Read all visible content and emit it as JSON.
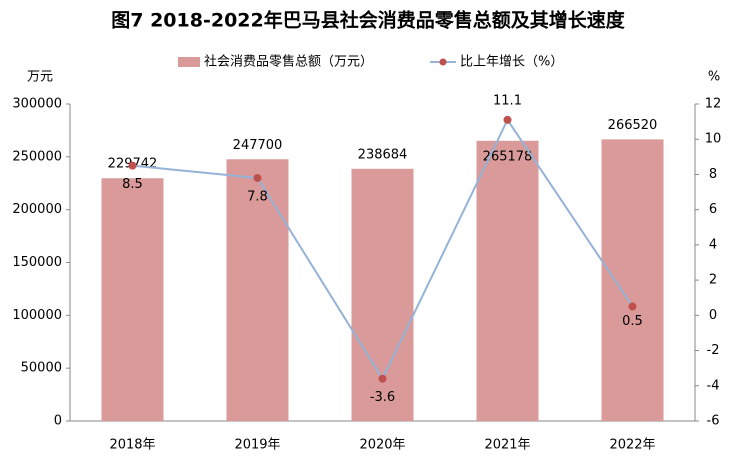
{
  "chart_data": {
    "type": "bar",
    "title": "图7  2018-2022年巴马县社会消费品零售总额及其增长速度",
    "y_label": "万元",
    "y2_label": "%",
    "categories": [
      "2018年",
      "2019年",
      "2020年",
      "2021年",
      "2022年"
    ],
    "series": [
      {
        "name": "社会消费品零售总额（万元）",
        "type": "bar",
        "color": "#d99a99",
        "values": [
          229742,
          247700,
          238684,
          265178,
          266520
        ]
      },
      {
        "name": "比上年增长（%）",
        "type": "line",
        "axis": "y2",
        "color": "#95b3d7",
        "marker_color": "#c0504d",
        "values": [
          8.5,
          7.8,
          -3.6,
          11.1,
          0.5
        ]
      }
    ],
    "ylim": [
      0,
      300000
    ],
    "yticks": [
      0,
      50000,
      100000,
      150000,
      200000,
      250000,
      300000
    ],
    "y2lim": [
      -6,
      12
    ],
    "y2ticks": [
      -6,
      -4,
      -2,
      0,
      2,
      4,
      6,
      8,
      10,
      12
    ],
    "grid": false,
    "legend": "top"
  }
}
